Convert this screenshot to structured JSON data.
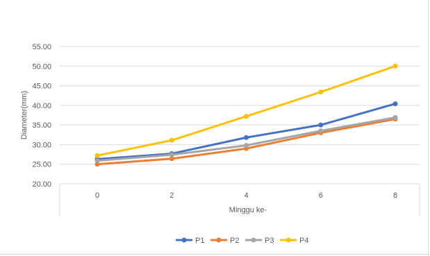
{
  "chart_data": {
    "type": "line",
    "xlabel": "Minggu ke-",
    "ylabel": "Diameter(mm)",
    "x": [
      0,
      2,
      4,
      6,
      8
    ],
    "categories": [
      "0",
      "2",
      "4",
      "6",
      "8"
    ],
    "ylim": [
      20,
      55
    ],
    "yticks": [
      "20.00",
      "25.00",
      "30.00",
      "35.00",
      "40.00",
      "45.00",
      "50.00",
      "55.00"
    ],
    "grid": true,
    "legend_position": "bottom",
    "series": [
      {
        "name": "P1",
        "color": "#4472C4",
        "values": [
          26.3,
          27.7,
          31.8,
          35.0,
          40.4
        ]
      },
      {
        "name": "P2",
        "color": "#ED7D31",
        "values": [
          25.0,
          26.4,
          29.0,
          33.0,
          36.5
        ]
      },
      {
        "name": "P3",
        "color": "#A5A5A5",
        "values": [
          25.9,
          27.4,
          29.8,
          33.5,
          36.9
        ]
      },
      {
        "name": "P4",
        "color": "#FFC000",
        "values": [
          27.2,
          31.1,
          37.2,
          43.4,
          50.0
        ]
      }
    ]
  }
}
